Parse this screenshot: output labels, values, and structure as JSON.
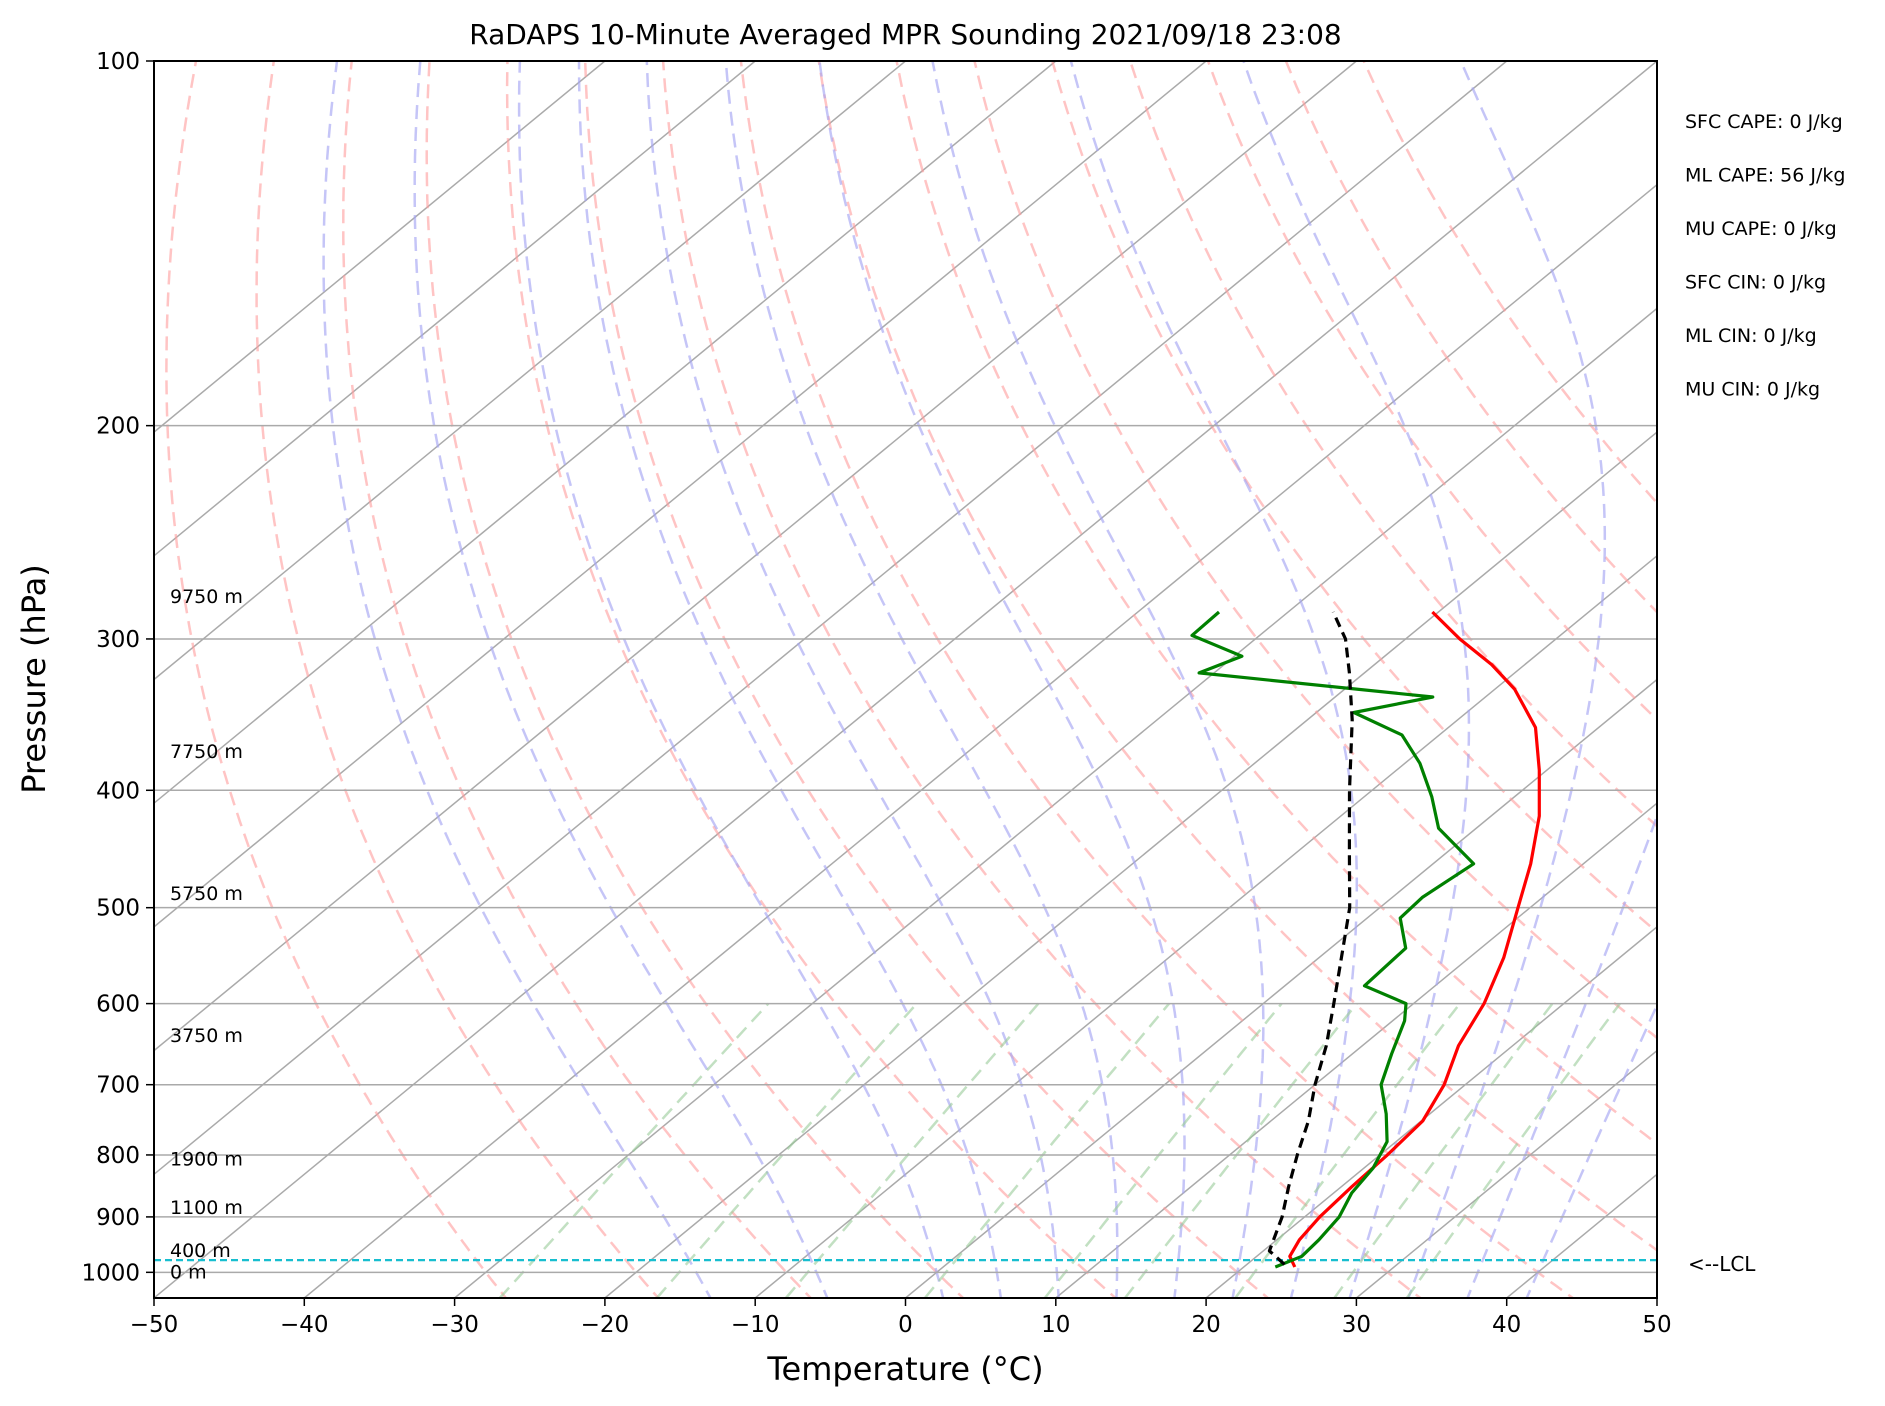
{
  "chart_data": {
    "type": "line",
    "subtype": "skew-t log-p sounding",
    "title": "RaDAPS 10-Minute Averaged MPR Sounding 2021/09/18 23:08",
    "xlabel": "Temperature (°C)",
    "ylabel": "Pressure (hPa)",
    "xlim": [
      -50,
      50
    ],
    "ylim": [
      1050,
      100
    ],
    "y_scale": "log",
    "grid": true,
    "x_ticks": [
      -50,
      -40,
      -30,
      -20,
      -10,
      0,
      10,
      20,
      30,
      40,
      50
    ],
    "x_tick_labels": [
      "−50",
      "−40",
      "−30",
      "−20",
      "−10",
      "0",
      "10",
      "20",
      "30",
      "40",
      "50"
    ],
    "y_ticks": [
      100,
      200,
      300,
      400,
      500,
      600,
      700,
      800,
      900,
      1000
    ],
    "y_tick_labels": [
      "100",
      "200",
      "300",
      "400",
      "500",
      "600",
      "700",
      "800",
      "900",
      "1000"
    ],
    "skew_isotherms_c": [
      -120,
      -110,
      -100,
      -90,
      -80,
      -70,
      -60,
      -50,
      -40,
      -30,
      -20,
      -10,
      0,
      10,
      20,
      30,
      40,
      50
    ],
    "dry_adiabats_theta_c": [
      -30,
      -20,
      -10,
      0,
      10,
      20,
      30,
      40,
      50,
      60,
      70,
      80,
      90,
      100,
      110,
      120
    ],
    "moist_adiabats_thetaw_c": [
      -16,
      -8,
      0,
      4,
      8,
      12,
      16,
      20,
      24,
      28,
      32,
      36,
      40
    ],
    "mixing_ratio_lines_gkg": [
      0.4,
      1,
      2,
      4,
      7,
      10,
      16,
      24,
      32
    ],
    "series": [
      {
        "key": "temperature",
        "color": "#ff0000",
        "points": [
          [
            23.4,
            990
          ],
          [
            22.2,
            970
          ],
          [
            21.5,
            940
          ],
          [
            21.0,
            900
          ],
          [
            20.7,
            850
          ],
          [
            20.5,
            800
          ],
          [
            20.1,
            750
          ],
          [
            18.6,
            700
          ],
          [
            16.4,
            650
          ],
          [
            14.7,
            600
          ],
          [
            12.3,
            550
          ],
          [
            9.2,
            500
          ],
          [
            6.5,
            460
          ],
          [
            3.2,
            420
          ],
          [
            -0.5,
            385
          ],
          [
            -4.2,
            355
          ],
          [
            -8.7,
            330
          ],
          [
            -12.2,
            315
          ],
          [
            -16.4,
            300
          ],
          [
            -20.4,
            285
          ]
        ]
      },
      {
        "key": "dewpoint",
        "color": "#008000",
        "points": [
          [
            22.1,
            990
          ],
          [
            23.0,
            970
          ],
          [
            22.8,
            940
          ],
          [
            22.3,
            900
          ],
          [
            21.2,
            860
          ],
          [
            20.6,
            820
          ],
          [
            19.4,
            780
          ],
          [
            17.1,
            740
          ],
          [
            14.4,
            700
          ],
          [
            12.6,
            660
          ],
          [
            10.8,
            620
          ],
          [
            9.5,
            600
          ],
          [
            5.3,
            580
          ],
          [
            5.0,
            540
          ],
          [
            2.2,
            510
          ],
          [
            2.0,
            490
          ],
          [
            2.7,
            460
          ],
          [
            -2.5,
            430
          ],
          [
            -5.5,
            405
          ],
          [
            -9.0,
            380
          ],
          [
            -12.5,
            360
          ],
          [
            -17.5,
            345
          ],
          [
            -13.5,
            335
          ],
          [
            -31.0,
            320
          ],
          [
            -29.5,
            310
          ],
          [
            -34.5,
            298
          ],
          [
            -34.6,
            285
          ]
        ]
      },
      {
        "key": "parcel",
        "color": "#000000",
        "dashed": true,
        "points": [
          [
            22.5,
            985
          ],
          [
            20.4,
            960
          ],
          [
            18.5,
            900
          ],
          [
            16.5,
            850
          ],
          [
            14.5,
            800
          ],
          [
            12.5,
            750
          ],
          [
            10.0,
            700
          ],
          [
            7.6,
            650
          ],
          [
            4.7,
            600
          ],
          [
            1.5,
            550
          ],
          [
            -2.0,
            500
          ],
          [
            -6.5,
            450
          ],
          [
            -11.5,
            400
          ],
          [
            -17.0,
            350
          ],
          [
            -21.0,
            320
          ],
          [
            -24.0,
            300
          ],
          [
            -27.0,
            285
          ]
        ]
      }
    ],
    "height_labels": [
      {
        "text": "0 m",
        "p": 1000
      },
      {
        "text": "400 m",
        "p": 960
      },
      {
        "text": "1100 m",
        "p": 885
      },
      {
        "text": "1900 m",
        "p": 807
      },
      {
        "text": "3750 m",
        "p": 638
      },
      {
        "text": "5750 m",
        "p": 487
      },
      {
        "text": "7750 m",
        "p": 372
      },
      {
        "text": "9750 m",
        "p": 277
      }
    ],
    "lcl": {
      "p": 977,
      "label": "<--LCL",
      "color": "#17becf"
    },
    "indices": [
      "SFC CAPE: 0 J/kg",
      "ML CAPE: 56 J/kg",
      "MU CAPE: 0 J/kg",
      "SFC CIN: 0 J/kg",
      "ML CIN: 0 J/kg",
      "MU CIN: 0 J/kg"
    ],
    "colors": {
      "isotherm": "#aaaaaa",
      "dry_adiabat": "#ff9d9d",
      "moist_adiabat": "#a6a6f2",
      "mixing_ratio": "#99cc99"
    }
  }
}
